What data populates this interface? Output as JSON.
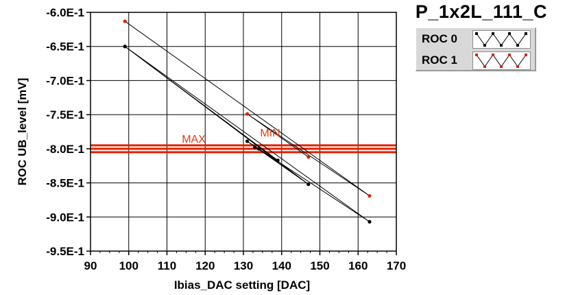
{
  "chart_data": {
    "type": "scatter",
    "title": "P_1x2L_111_C",
    "xlabel": "Ibias_DAC setting [DAC]",
    "ylabel": "ROC UB_level [mV]",
    "xlim": [
      90,
      170
    ],
    "ylim": [
      -0.95,
      -0.6
    ],
    "x_ticks": [
      90,
      100,
      110,
      120,
      130,
      140,
      150,
      160,
      170
    ],
    "x_tick_labels": [
      "90",
      "100",
      "110",
      "120",
      "130",
      "140",
      "150",
      "160",
      "170"
    ],
    "y_ticks": [
      -0.6,
      -0.65,
      -0.7,
      -0.75,
      -0.8,
      -0.85,
      -0.9,
      -0.95
    ],
    "y_tick_labels": [
      "-6.0E-1",
      "-6.5E-1",
      "-7.0E-1",
      "-7.5E-1",
      "-8.0E-1",
      "-8.5E-1",
      "-9.0E-1",
      "-9.5E-1"
    ],
    "grid": true,
    "legend_position": "top-right",
    "series": [
      {
        "name": "ROC 0",
        "color": "#000000",
        "points": [
          [
            99,
            -0.65
          ],
          [
            163,
            -0.907
          ],
          [
            131,
            -0.789
          ],
          [
            147,
            -0.852
          ],
          [
            99,
            -0.65
          ],
          [
            139,
            -0.817
          ],
          [
            133,
            -0.798
          ],
          [
            134,
            -0.8
          ],
          [
            147,
            -0.852
          ]
        ]
      },
      {
        "name": "ROC 1",
        "color": "#e02000",
        "points": [
          [
            99,
            -0.613
          ],
          [
            163,
            -0.869
          ],
          [
            131,
            -0.749
          ],
          [
            147,
            -0.812
          ]
        ]
      }
    ],
    "annotations": [
      {
        "text": "MAX",
        "x": 117,
        "y": -0.791,
        "color": "#e03a10"
      },
      {
        "text": "MIN",
        "x": 137,
        "y": -0.782,
        "color": "#e03a10"
      }
    ],
    "threshold_lines": [
      {
        "y": -0.795,
        "color": "#e02000"
      },
      {
        "y": -0.8,
        "color": "#e02000"
      },
      {
        "y": -0.805,
        "color": "#e02000"
      }
    ]
  }
}
